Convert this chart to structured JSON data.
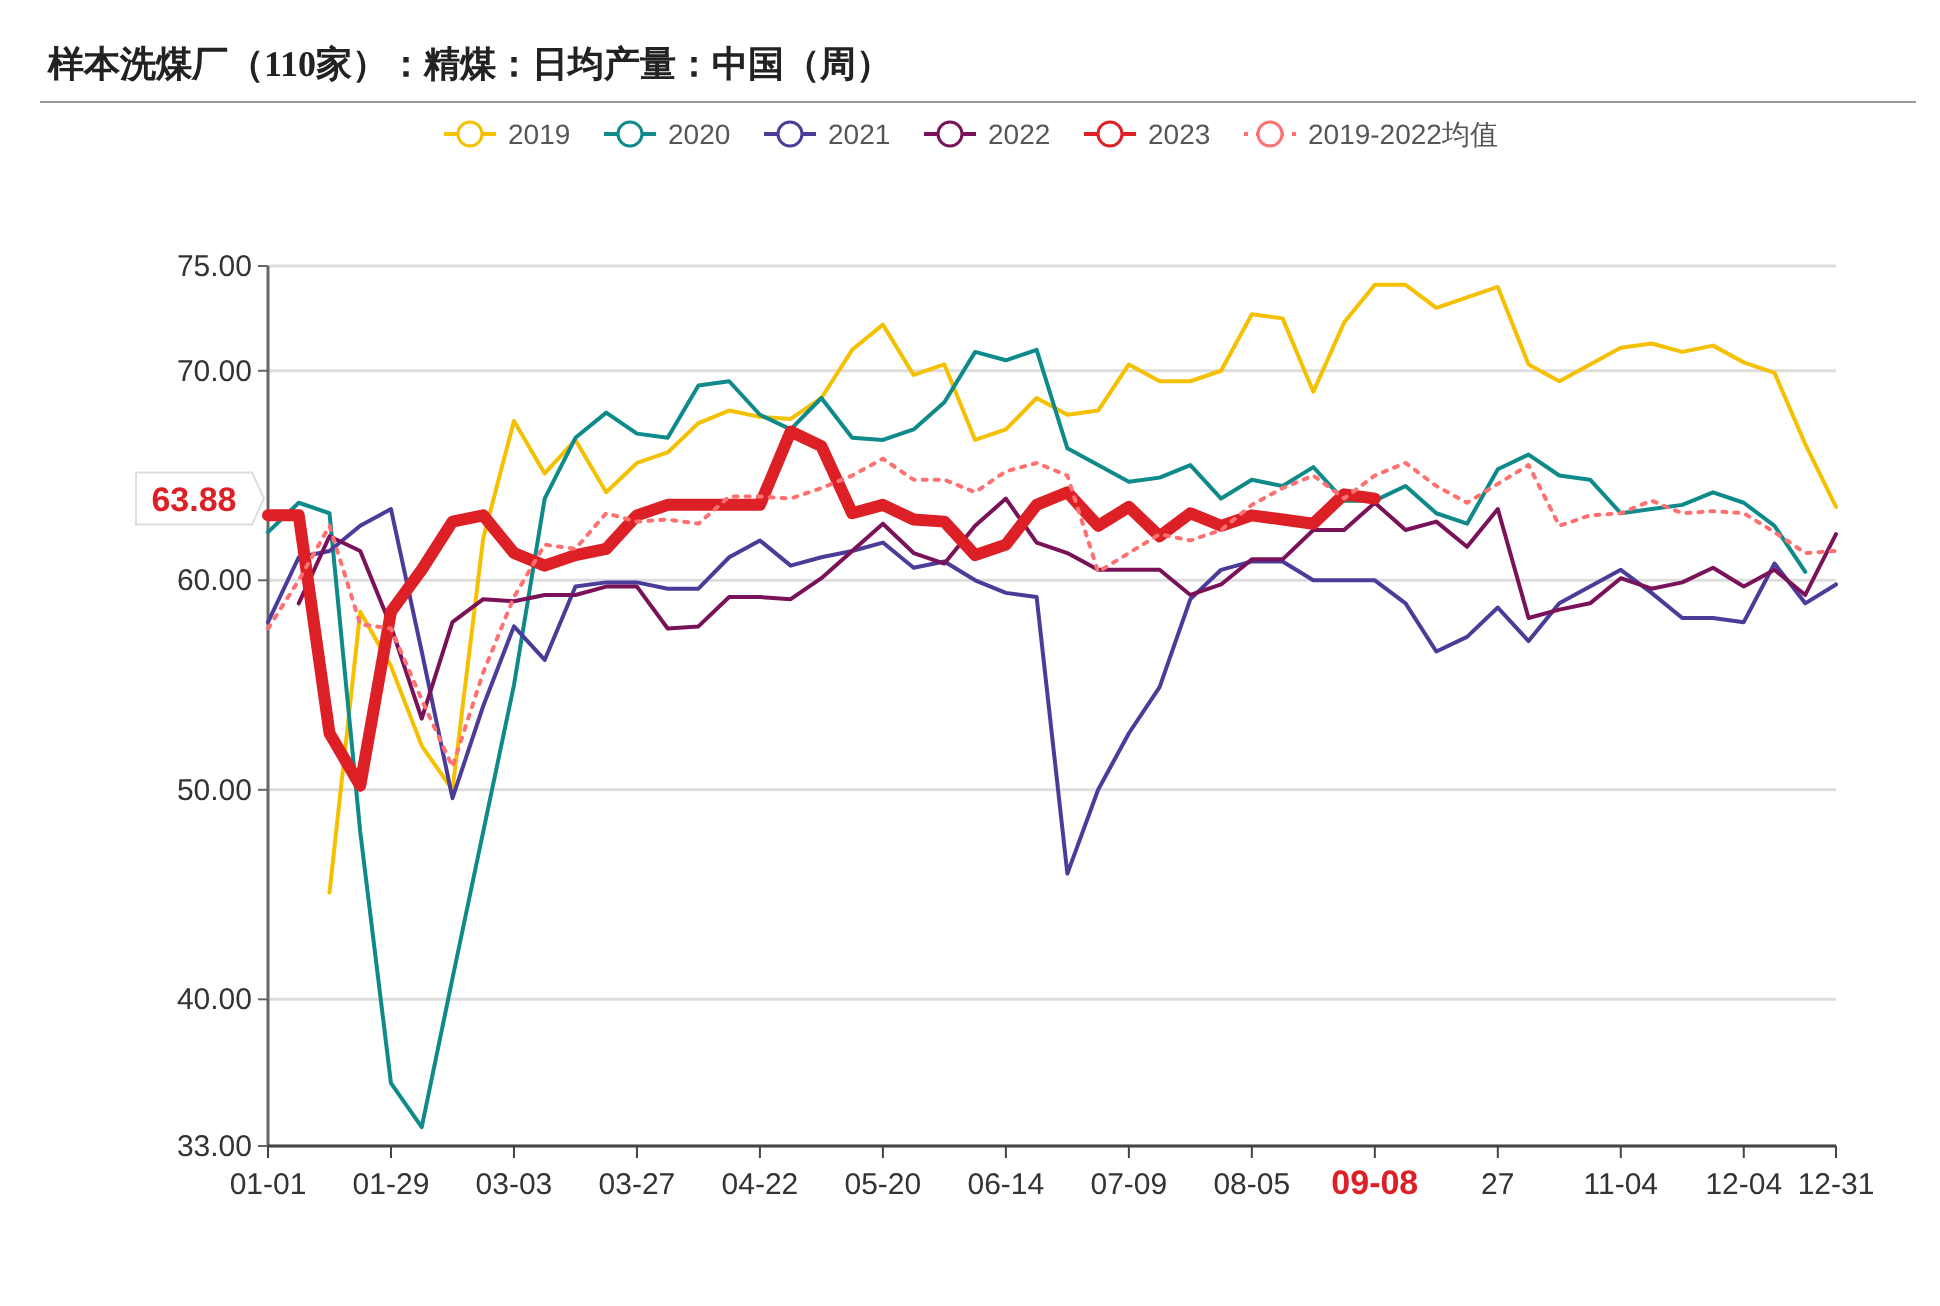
{
  "chart_data": {
    "type": "line",
    "title": "样本洗煤厂（110家）：精煤：日均产量：中国（周）",
    "categories": [
      "01-01",
      null,
      null,
      null,
      "01-29",
      null,
      null,
      null,
      "03-03",
      null,
      null,
      null,
      "03-27",
      null,
      null,
      null,
      "04-22",
      null,
      null,
      null,
      "05-20",
      null,
      null,
      null,
      "06-14",
      null,
      null,
      null,
      "07-09",
      null,
      null,
      null,
      "08-05",
      null,
      null,
      null,
      "09-08",
      null,
      null,
      null,
      "27",
      null,
      null,
      null,
      "11-04",
      null,
      null,
      null,
      "12-04",
      null,
      null,
      "12-31"
    ],
    "ylim": [
      33,
      75
    ],
    "yticks": [
      {
        "value": 33,
        "label": "33.00"
      },
      {
        "value": 40,
        "label": "40.00"
      },
      {
        "value": 50,
        "label": "50.00"
      },
      {
        "value": 60,
        "label": "60.00"
      },
      {
        "value": 70,
        "label": "70.00"
      },
      {
        "value": 75,
        "label": "75.00"
      }
    ],
    "grid": "y",
    "legend": "top",
    "annotations": [
      "63.88"
    ],
    "series": [
      {
        "name": "2019",
        "color": "#f5c000",
        "values": [
          null,
          null,
          45.1,
          58.5,
          55.9,
          52.1,
          50,
          62,
          67.6,
          65.1,
          66.7,
          64.2,
          65.6,
          66.1,
          67.5,
          68.1,
          67.8,
          67.7,
          68.7,
          71,
          72.2,
          69.8,
          70.3,
          66.7,
          67.2,
          68.7,
          67.9,
          68.1,
          70.3,
          69.5,
          69.5,
          70,
          72.7,
          72.5,
          69,
          72.3,
          74.1,
          74.1,
          73,
          73.5,
          74,
          70.3,
          69.5,
          70.3,
          71.1,
          71.3,
          70.9,
          71.2,
          70.4,
          69.9,
          66.5,
          63.5
        ]
      },
      {
        "name": "2020",
        "color": "#0e8a8a",
        "values": [
          62.3,
          63.7,
          63.2,
          48,
          36,
          33.9,
          41,
          48,
          55,
          63.9,
          66.8,
          68,
          67,
          66.8,
          69.3,
          69.5,
          67.9,
          67.2,
          68.7,
          66.8,
          66.7,
          67.2,
          68.5,
          70.9,
          70.5,
          71,
          66.3,
          65.5,
          64.7,
          64.9,
          65.5,
          63.9,
          64.8,
          64.5,
          65.4,
          63.8,
          63.8,
          64.5,
          63.2,
          62.7,
          65.3,
          66,
          65,
          64.8,
          63.2,
          63.4,
          63.6,
          64.2,
          63.7,
          62.6,
          60.4,
          null
        ]
      },
      {
        "name": "2021",
        "color": "#4b3c9a",
        "values": [
          58,
          61.1,
          61.4,
          62.6,
          63.4,
          56.6,
          49.6,
          54,
          57.8,
          56.2,
          59.7,
          59.9,
          59.9,
          59.6,
          59.6,
          61.1,
          61.9,
          60.7,
          61.1,
          61.4,
          61.8,
          60.6,
          60.9,
          60,
          59.4,
          59.2,
          46,
          50,
          52.7,
          54.9,
          59.1,
          60.5,
          60.9,
          60.9,
          60,
          60,
          60,
          58.9,
          56.6,
          57.3,
          58.7,
          57.1,
          58.9,
          59.7,
          60.5,
          59.4,
          58.2,
          58.2,
          58,
          60.8,
          58.9,
          59.8
        ]
      },
      {
        "name": "2022",
        "color": "#7a1259",
        "values": [
          null,
          58.9,
          62.1,
          61.4,
          57.8,
          53.4,
          58,
          59.1,
          59,
          59.3,
          59.3,
          59.7,
          59.7,
          57.7,
          57.8,
          59.2,
          59.2,
          59.1,
          60.1,
          61.4,
          62.7,
          61.3,
          60.8,
          62.6,
          63.9,
          61.8,
          61.3,
          60.5,
          60.5,
          60.5,
          59.3,
          59.8,
          61,
          61,
          62.4,
          62.4,
          63.7,
          62.4,
          62.8,
          61.6,
          63.4,
          58.2,
          58.6,
          58.9,
          60.1,
          59.6,
          59.9,
          60.6,
          59.7,
          60.5,
          59.3,
          62.2
        ]
      },
      {
        "name": "2023",
        "color": "#dd1f26",
        "values": [
          63.1,
          63.1,
          52.7,
          50.2,
          58.5,
          60.5,
          62.8,
          63.1,
          61.3,
          60.7,
          61.2,
          61.5,
          63.1,
          63.6,
          63.6,
          63.6,
          63.6,
          67.1,
          66.4,
          63.2,
          63.6,
          62.9,
          62.8,
          61.2,
          61.7,
          63.6,
          64.2,
          62.6,
          63.5,
          62.1,
          63.2,
          62.6,
          63.1,
          62.9,
          62.7,
          64.1,
          63.9,
          null,
          null,
          null,
          null,
          null,
          null,
          null,
          null,
          null,
          null,
          null,
          null,
          null,
          null,
          null
        ]
      },
      {
        "name": "2019-2022均值",
        "color": "#ff7070",
        "line_style": "dotted",
        "values": [
          57.7,
          60,
          62.6,
          57.9,
          57.7,
          54.3,
          51.1,
          55.6,
          59.2,
          61.7,
          61.5,
          63.2,
          62.8,
          62.9,
          62.7,
          64,
          64,
          63.9,
          64.4,
          65,
          65.8,
          64.8,
          64.8,
          64.2,
          65.2,
          65.6,
          65,
          60.4,
          61.3,
          62.2,
          61.9,
          62.4,
          63.6,
          64.4,
          65,
          63.9,
          65,
          65.6,
          64.5,
          63.7,
          64.6,
          65.5,
          62.6,
          63.1,
          63.2,
          63.8,
          63.2,
          63.3,
          63.2,
          62.3,
          61.3,
          61.4
        ]
      }
    ]
  }
}
